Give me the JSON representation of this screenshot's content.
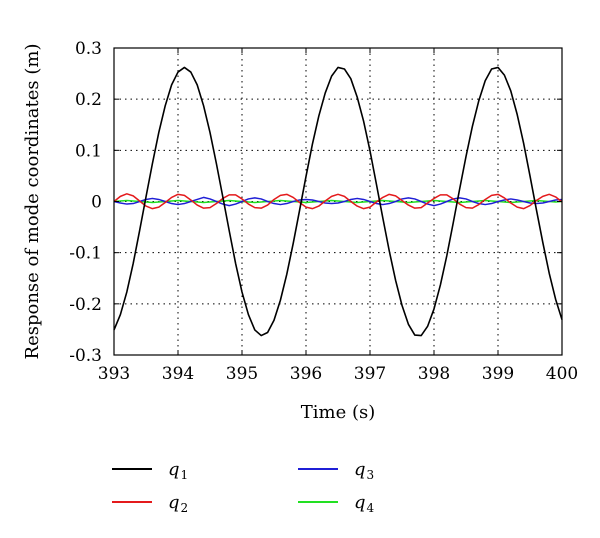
{
  "chart_data": {
    "type": "line",
    "title": "",
    "xlabel": "Time (s)",
    "ylabel": "Response of mode coordinates (m)",
    "xlim": [
      393,
      400
    ],
    "ylim": [
      -0.3,
      0.3
    ],
    "xticks": [
      393,
      394,
      395,
      396,
      397,
      398,
      399,
      400
    ],
    "yticks": [
      0.3,
      0.2,
      0.1,
      0,
      -0.1,
      -0.2,
      -0.3
    ],
    "xtick_labels": [
      "393",
      "394",
      "395",
      "396",
      "397",
      "398",
      "399",
      "400"
    ],
    "ytick_labels": [
      "0.3",
      "0.2",
      "0.1",
      "0",
      "-0.1",
      "-0.2",
      "-0.3"
    ],
    "grid": true,
    "legend_position": "bottom",
    "series": [
      {
        "name": "q1",
        "base": "q",
        "sub": "1",
        "color": "#000000",
        "x": [
          393.0,
          393.1,
          393.2,
          393.3,
          393.4,
          393.5,
          393.6,
          393.7,
          393.8,
          393.9,
          394.0,
          394.1,
          394.2,
          394.3,
          394.4,
          394.5,
          394.6,
          394.7,
          394.8,
          394.9,
          395.0,
          395.1,
          395.2,
          395.3,
          395.4,
          395.5,
          395.6,
          395.7,
          395.8,
          395.9,
          396.0,
          396.1,
          396.2,
          396.3,
          396.4,
          396.5,
          396.6,
          396.7,
          396.8,
          396.9,
          397.0,
          397.1,
          397.2,
          397.3,
          397.4,
          397.5,
          397.6,
          397.7,
          397.8,
          397.9,
          398.0,
          398.1,
          398.2,
          398.3,
          398.4,
          398.5,
          398.6,
          398.7,
          398.8,
          398.9,
          399.0,
          399.1,
          399.2,
          399.3,
          399.4,
          399.5,
          399.6,
          399.7,
          399.8,
          399.9,
          400.0
        ],
        "y": [
          -0.251,
          -0.221,
          -0.177,
          -0.121,
          -0.057,
          0.009,
          0.074,
          0.135,
          0.187,
          0.228,
          0.253,
          0.262,
          0.253,
          0.228,
          0.187,
          0.135,
          0.074,
          0.009,
          -0.057,
          -0.121,
          -0.177,
          -0.221,
          -0.251,
          -0.262,
          -0.256,
          -0.232,
          -0.193,
          -0.142,
          -0.082,
          -0.017,
          0.049,
          0.112,
          0.167,
          0.212,
          0.245,
          0.262,
          0.259,
          0.24,
          0.204,
          0.157,
          0.099,
          0.034,
          -0.032,
          -0.096,
          -0.154,
          -0.203,
          -0.24,
          -0.261,
          -0.262,
          -0.244,
          -0.21,
          -0.163,
          -0.106,
          -0.042,
          0.024,
          0.088,
          0.147,
          0.197,
          0.236,
          0.259,
          0.262,
          0.247,
          0.216,
          0.17,
          0.114,
          0.05,
          -0.016,
          -0.08,
          -0.14,
          -0.191,
          -0.231
        ]
      },
      {
        "name": "q2",
        "base": "q",
        "sub": "2",
        "color": "#e41a1c",
        "x": [
          393.0,
          393.1,
          393.2,
          393.3,
          393.4,
          393.5,
          393.6,
          393.7,
          393.8,
          393.9,
          394.0,
          394.1,
          394.2,
          394.3,
          394.4,
          394.5,
          394.6,
          394.7,
          394.8,
          394.9,
          395.0,
          395.1,
          395.2,
          395.3,
          395.4,
          395.5,
          395.6,
          395.7,
          395.8,
          395.9,
          396.0,
          396.1,
          396.2,
          396.3,
          396.4,
          396.5,
          396.6,
          396.7,
          396.8,
          396.9,
          397.0,
          397.1,
          397.2,
          397.3,
          397.4,
          397.5,
          397.6,
          397.7,
          397.8,
          397.9,
          398.0,
          398.1,
          398.2,
          398.3,
          398.4,
          398.5,
          398.6,
          398.7,
          398.8,
          398.9,
          399.0,
          399.1,
          399.2,
          399.3,
          399.4,
          399.5,
          399.6,
          399.7,
          399.8,
          399.9,
          400.0
        ],
        "y": [
          0.0,
          0.01,
          0.015,
          0.011,
          0.001,
          -0.009,
          -0.014,
          -0.011,
          -0.002,
          0.008,
          0.014,
          0.012,
          0.003,
          -0.007,
          -0.013,
          -0.012,
          -0.004,
          0.006,
          0.013,
          0.013,
          0.005,
          -0.005,
          -0.012,
          -0.013,
          -0.007,
          0.004,
          0.012,
          0.014,
          0.008,
          -0.002,
          -0.011,
          -0.014,
          -0.009,
          0.001,
          0.01,
          0.014,
          0.01,
          0.0,
          -0.009,
          -0.014,
          -0.011,
          -0.001,
          0.008,
          0.014,
          0.011,
          0.002,
          -0.007,
          -0.013,
          -0.012,
          -0.003,
          0.006,
          0.013,
          0.013,
          0.005,
          -0.005,
          -0.012,
          -0.013,
          -0.006,
          0.004,
          0.012,
          0.014,
          0.007,
          -0.003,
          -0.011,
          -0.014,
          -0.008,
          0.002,
          0.01,
          0.014,
          0.009,
          -0.001
        ]
      },
      {
        "name": "q3",
        "base": "q",
        "sub": "3",
        "color": "#1f1fd6",
        "x": [
          393.0,
          393.1,
          393.2,
          393.3,
          393.4,
          393.5,
          393.6,
          393.7,
          393.8,
          393.9,
          394.0,
          394.1,
          394.2,
          394.3,
          394.4,
          394.5,
          394.6,
          394.7,
          394.8,
          394.9,
          395.0,
          395.1,
          395.2,
          395.3,
          395.4,
          395.5,
          395.6,
          395.7,
          395.8,
          395.9,
          396.0,
          396.1,
          396.2,
          396.3,
          396.4,
          396.5,
          396.6,
          396.7,
          396.8,
          396.9,
          397.0,
          397.1,
          397.2,
          397.3,
          397.4,
          397.5,
          397.6,
          397.7,
          397.8,
          397.9,
          398.0,
          398.1,
          398.2,
          398.3,
          398.4,
          398.5,
          398.6,
          398.7,
          398.8,
          398.9,
          399.0,
          399.1,
          399.2,
          399.3,
          399.4,
          399.5,
          399.6,
          399.7,
          399.8,
          399.9,
          400.0
        ],
        "y": [
          0.0,
          -0.003,
          -0.005,
          -0.004,
          0.0,
          0.004,
          0.006,
          0.004,
          0.0,
          -0.004,
          -0.006,
          -0.004,
          0.0,
          0.004,
          0.008,
          0.005,
          0.0,
          -0.005,
          -0.008,
          -0.005,
          0.0,
          0.005,
          0.007,
          0.005,
          0.0,
          -0.004,
          -0.006,
          -0.004,
          0.0,
          0.003,
          0.004,
          0.003,
          0.0,
          -0.003,
          -0.004,
          -0.003,
          0.0,
          0.004,
          0.006,
          0.004,
          0.0,
          -0.004,
          -0.006,
          -0.004,
          0.0,
          0.005,
          0.007,
          0.005,
          0.0,
          -0.005,
          -0.008,
          -0.005,
          0.0,
          0.005,
          0.007,
          0.005,
          0.0,
          -0.004,
          -0.006,
          -0.004,
          0.0,
          0.003,
          0.005,
          0.003,
          0.0,
          -0.003,
          -0.004,
          -0.003,
          0.0,
          0.003,
          0.004
        ]
      },
      {
        "name": "q4",
        "base": "q",
        "sub": "4",
        "color": "#22e022",
        "x": [
          393.0,
          393.1,
          393.2,
          393.3,
          393.4,
          393.5,
          393.6,
          393.7,
          393.8,
          393.9,
          394.0,
          394.1,
          394.2,
          394.3,
          394.4,
          394.5,
          394.6,
          394.7,
          394.8,
          394.9,
          395.0,
          395.1,
          395.2,
          395.3,
          395.4,
          395.5,
          395.6,
          395.7,
          395.8,
          395.9,
          396.0,
          396.1,
          396.2,
          396.3,
          396.4,
          396.5,
          396.6,
          396.7,
          396.8,
          396.9,
          397.0,
          397.1,
          397.2,
          397.3,
          397.4,
          397.5,
          397.6,
          397.7,
          397.8,
          397.9,
          398.0,
          398.1,
          398.2,
          398.3,
          398.4,
          398.5,
          398.6,
          398.7,
          398.8,
          398.9,
          399.0,
          399.1,
          399.2,
          399.3,
          399.4,
          399.5,
          399.6,
          399.7,
          399.8,
          399.9,
          400.0
        ],
        "y": [
          0.0,
          0.001,
          0.002,
          0.001,
          0.0,
          -0.001,
          -0.002,
          -0.001,
          0.0,
          0.001,
          0.002,
          0.001,
          0.0,
          -0.001,
          -0.002,
          -0.001,
          0.0,
          0.001,
          0.002,
          0.001,
          0.0,
          -0.001,
          -0.002,
          -0.001,
          0.0,
          0.001,
          0.002,
          0.001,
          0.0,
          -0.001,
          -0.002,
          -0.001,
          0.0,
          0.001,
          0.002,
          0.001,
          0.0,
          -0.001,
          -0.002,
          -0.001,
          0.0,
          0.001,
          0.002,
          0.001,
          0.0,
          -0.001,
          -0.002,
          -0.001,
          0.0,
          0.001,
          0.002,
          0.001,
          0.0,
          -0.001,
          -0.002,
          -0.001,
          0.0,
          0.001,
          0.002,
          0.001,
          0.0,
          -0.001,
          -0.002,
          -0.001,
          0.0,
          0.001,
          0.002,
          0.001,
          0.0,
          -0.001,
          0.0
        ]
      }
    ]
  }
}
